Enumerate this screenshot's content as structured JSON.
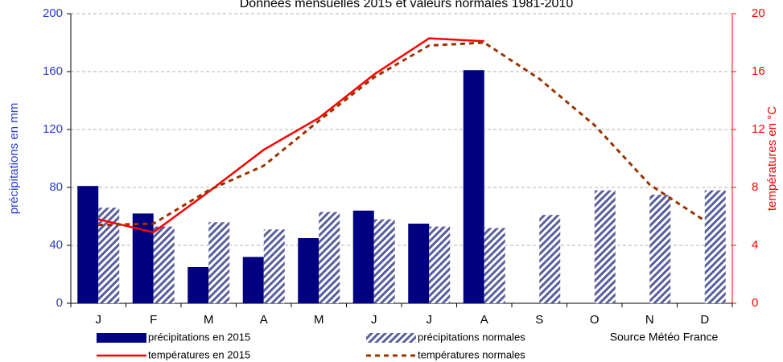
{
  "chart_data": {
    "type": "bar",
    "title": "Données mensuelles 2015 et valeurs normales 1981-2010",
    "source": "Source Météo France",
    "ylabel": "précipitations en mm",
    "y2label": "températures en °C",
    "categories": [
      "J",
      "F",
      "M",
      "A",
      "M",
      "J",
      "J",
      "A",
      "S",
      "O",
      "N",
      "D"
    ],
    "ylim": [
      0,
      200
    ],
    "yticks": [
      0,
      40,
      80,
      120,
      160,
      200
    ],
    "y2lim": [
      0,
      20
    ],
    "y2ticks": [
      0,
      4,
      8,
      12,
      16,
      20
    ],
    "grid": true,
    "series": [
      {
        "name": "précipitations en 2015",
        "type": "bar",
        "color": "#000080",
        "values": [
          81,
          62,
          25,
          32,
          45,
          64,
          55,
          161,
          null,
          null,
          null,
          null
        ]
      },
      {
        "name": "précipitations normales",
        "type": "bar",
        "pattern": "hatched",
        "color": "#5a5e9e",
        "values": [
          66,
          53,
          56,
          51,
          63,
          58,
          53,
          52,
          61,
          78,
          75,
          78
        ]
      },
      {
        "name": "températures en 2015",
        "type": "line",
        "axis": "y2",
        "color": "#ff0000",
        "values": [
          5.8,
          4.9,
          7.7,
          10.6,
          12.8,
          15.8,
          18.3,
          18.1,
          null,
          null,
          null,
          null
        ]
      },
      {
        "name": "températures normales",
        "type": "line",
        "dash": "dashed",
        "axis": "y2",
        "color": "#993300",
        "values": [
          5.4,
          5.5,
          7.8,
          9.5,
          12.6,
          15.6,
          17.8,
          18.0,
          15.5,
          12.3,
          8.2,
          5.7
        ]
      }
    ]
  }
}
